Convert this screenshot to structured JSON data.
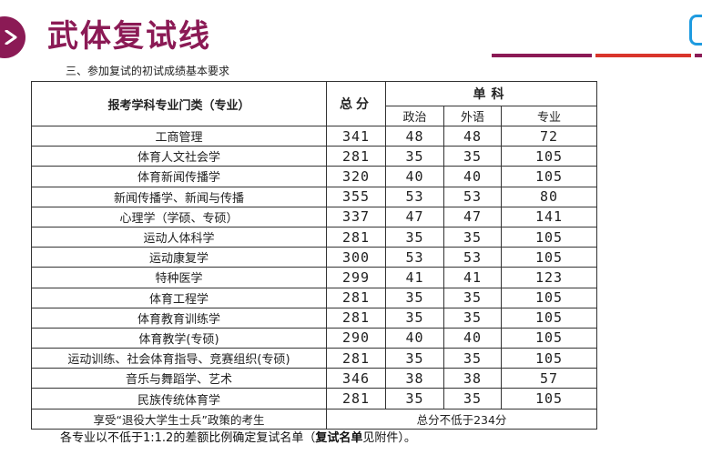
{
  "title": "武体复试线",
  "subtitle": "三、参加复试的初试成绩基本要求",
  "colors": {
    "title": "#8b1a55",
    "line_purple": "#8b1a55",
    "line_red": "#d9352b",
    "icon_blue": "#1e9be0"
  },
  "icons": {
    "left": "play-arrow-icon",
    "right": "bracket-icon"
  },
  "table": {
    "header": {
      "major": "报考学科专业门类（专业）",
      "total": "总分",
      "single": "单科",
      "politics": "政治",
      "foreign_language": "外语",
      "specialty": "专业"
    },
    "rows": [
      {
        "major": "工商管理",
        "total": "341",
        "politics": "48",
        "foreign": "48",
        "specialty": "72"
      },
      {
        "major": "体育人文社会学",
        "total": "281",
        "politics": "35",
        "foreign": "35",
        "specialty": "105"
      },
      {
        "major": "体育新闻传播学",
        "total": "320",
        "politics": "40",
        "foreign": "40",
        "specialty": "105"
      },
      {
        "major": "新闻传播学、新闻与传播",
        "total": "355",
        "politics": "53",
        "foreign": "53",
        "specialty": "80"
      },
      {
        "major": "心理学（学硕、专硕）",
        "total": "337",
        "politics": "47",
        "foreign": "47",
        "specialty": "141"
      },
      {
        "major": "运动人体科学",
        "total": "281",
        "politics": "35",
        "foreign": "35",
        "specialty": "105"
      },
      {
        "major": "运动康复学",
        "total": "300",
        "politics": "53",
        "foreign": "53",
        "specialty": "105"
      },
      {
        "major": "特种医学",
        "total": "299",
        "politics": "41",
        "foreign": "41",
        "specialty": "123"
      },
      {
        "major": "体育工程学",
        "total": "281",
        "politics": "35",
        "foreign": "35",
        "specialty": "105"
      },
      {
        "major": "体育教育训练学",
        "total": "281",
        "politics": "35",
        "foreign": "35",
        "specialty": "105"
      },
      {
        "major": "体育教学(专硕)",
        "total": "290",
        "politics": "40",
        "foreign": "40",
        "specialty": "105"
      },
      {
        "major": "运动训练、社会体育指导、竞赛组织(专硕)",
        "total": "281",
        "politics": "35",
        "foreign": "35",
        "specialty": "105"
      },
      {
        "major": "音乐与舞蹈学、艺术",
        "total": "346",
        "politics": "38",
        "foreign": "38",
        "specialty": "57"
      },
      {
        "major": "民族传统体育学",
        "total": "281",
        "politics": "35",
        "foreign": "35",
        "specialty": "105"
      }
    ],
    "special_row": {
      "label": "享受“退役大学生士兵”政策的考生",
      "requirement": "总分不低于234分"
    }
  },
  "footnote": {
    "before": "各专业以不低于1:1.2的差额比例确定复试名单（",
    "bold": "复试名单",
    "after": "见附件）。"
  }
}
